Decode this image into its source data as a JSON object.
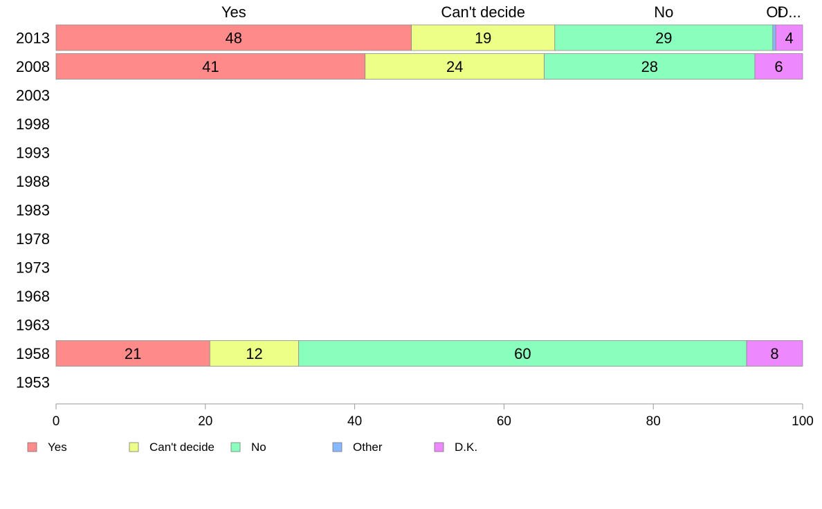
{
  "chart_data": {
    "type": "bar",
    "orientation": "horizontal",
    "stacked": true,
    "categories": [
      "2013",
      "2008",
      "2003",
      "1998",
      "1993",
      "1988",
      "1983",
      "1978",
      "1973",
      "1968",
      "1963",
      "1958",
      "1953"
    ],
    "series": [
      {
        "name": "Yes",
        "color": "#ff8a8a",
        "values": [
          47.6,
          41.4,
          null,
          null,
          null,
          null,
          null,
          null,
          null,
          null,
          null,
          20.6,
          null
        ],
        "labels": [
          "48",
          "41",
          "",
          "",
          "",
          "",
          "",
          "",
          "",
          "",
          "",
          "21",
          ""
        ]
      },
      {
        "name": "Can't decide",
        "color": "#eeff88",
        "values": [
          19.2,
          24.0,
          null,
          null,
          null,
          null,
          null,
          null,
          null,
          null,
          null,
          11.9,
          null
        ],
        "labels": [
          "19",
          "24",
          "",
          "",
          "",
          "",
          "",
          "",
          "",
          "",
          "",
          "12",
          ""
        ]
      },
      {
        "name": "No",
        "color": "#8affbd",
        "values": [
          29.2,
          28.2,
          null,
          null,
          null,
          null,
          null,
          null,
          null,
          null,
          null,
          60.0,
          null
        ],
        "labels": [
          "29",
          "28",
          "",
          "",
          "",
          "",
          "",
          "",
          "",
          "",
          "",
          "60",
          ""
        ]
      },
      {
        "name": "Other",
        "color": "#88b8ff",
        "values": [
          0.4,
          0,
          null,
          null,
          null,
          null,
          null,
          null,
          null,
          null,
          null,
          0,
          null
        ],
        "labels": [
          "",
          "",
          "",
          "",
          "",
          "",
          "",
          "",
          "",
          "",
          "",
          "",
          ""
        ]
      },
      {
        "name": "D.K.",
        "color": "#ee88ff",
        "values": [
          3.6,
          6.4,
          null,
          null,
          null,
          null,
          null,
          null,
          null,
          null,
          null,
          7.5,
          null
        ],
        "labels": [
          "4",
          "6",
          "",
          "",
          "",
          "",
          "",
          "",
          "",
          "",
          "",
          "8",
          ""
        ]
      }
    ],
    "top_labels": [
      "Yes",
      "Can't decide",
      "No",
      "Ot",
      "D..."
    ],
    "xlim": [
      0,
      100
    ],
    "xticks": [
      "0",
      "20",
      "40",
      "60",
      "80",
      "100"
    ],
    "grid": false,
    "legend_position": "bottom"
  }
}
